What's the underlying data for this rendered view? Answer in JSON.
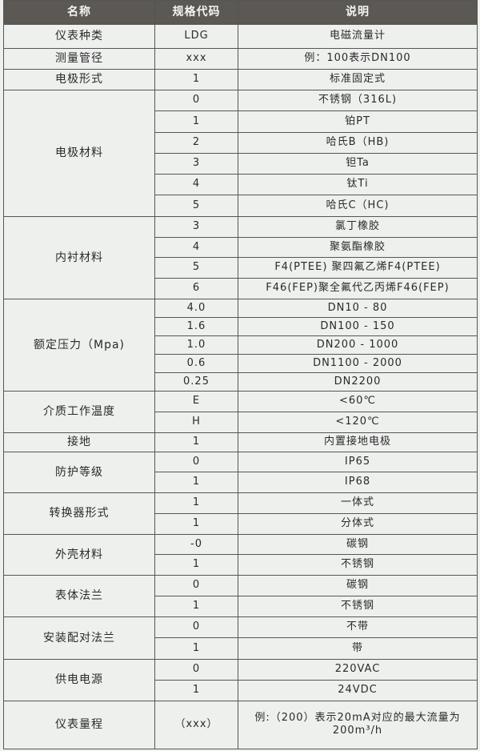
{
  "headers": [
    "名称",
    "规格代码",
    "说明"
  ],
  "groups": [
    {
      "name": "仪表种类",
      "rows": [
        [
          "LDG",
          "电磁流量计"
        ]
      ],
      "h": 30
    },
    {
      "name": "测量管径",
      "rows": [
        [
          "xxx",
          "例：100表示DN100"
        ]
      ],
      "h": 26
    },
    {
      "name": "电极形式",
      "rows": [
        [
          "1",
          "标准固定式"
        ]
      ],
      "h": 26
    },
    {
      "name": "电极材料",
      "rows": [
        [
          "0",
          "不锈钢（316L)"
        ],
        [
          "1",
          "铂PT"
        ],
        [
          "2",
          "哈氏B（HB)"
        ],
        [
          "3",
          "钽Ta"
        ],
        [
          "4",
          "钛Ti"
        ],
        [
          "5",
          "哈氏C（HC)"
        ]
      ],
      "h": 26.3
    },
    {
      "name": "内衬材料",
      "rows": [
        [
          "3",
          "氯丁橡胶"
        ],
        [
          "4",
          "聚氨酯橡胶"
        ],
        [
          "5",
          "F4(PTEE) 聚四氟乙烯F4(PTEE)"
        ],
        [
          "6",
          "F46(FEP)聚全氟代乙丙烯F46(FEP)"
        ]
      ],
      "h": 25.8
    },
    {
      "name": "额定压力（Mpa)",
      "rows": [
        [
          "4.0",
          "DN10 - 80"
        ],
        [
          "1.6",
          "DN100 - 150"
        ],
        [
          "1.0",
          "DN200 - 1000"
        ],
        [
          "0.6",
          "DN1100 - 2000"
        ],
        [
          "0.25",
          "DN2200"
        ]
      ],
      "h": 23
    },
    {
      "name": "介质工作温度",
      "rows": [
        [
          "E",
          "<60℃"
        ],
        [
          "H",
          "<120℃"
        ]
      ],
      "h": 26
    },
    {
      "name": "接地",
      "rows": [
        [
          "1",
          "内置接地电极"
        ]
      ],
      "h": 24
    },
    {
      "name": "防护等级",
      "rows": [
        [
          "0",
          "IP65"
        ],
        [
          "1",
          "IP68"
        ]
      ],
      "h": 25.5
    },
    {
      "name": "转换器形式",
      "rows": [
        [
          "1",
          "一体式"
        ],
        [
          "1",
          "分体式"
        ]
      ],
      "h": 26
    },
    {
      "name": "外壳材料",
      "rows": [
        [
          "-0",
          "碳钢"
        ],
        [
          "1",
          "不锈钢"
        ]
      ],
      "h": 25.5
    },
    {
      "name": "表体法兰",
      "rows": [
        [
          "0",
          "碳钢"
        ],
        [
          "1",
          "不锈钢"
        ]
      ],
      "h": 26
    },
    {
      "name": "安装配对法兰",
      "rows": [
        [
          "0",
          "不带"
        ],
        [
          "1",
          "带"
        ]
      ],
      "h": 26.5
    },
    {
      "name": "供电电源",
      "rows": [
        [
          "0",
          "220VAC"
        ],
        [
          "1",
          "24VDC"
        ]
      ],
      "h": 26
    },
    {
      "name": "仪表量程",
      "rows": [
        [
          "（xxx）",
          "例:（200）表示20mA对应的最大流量为200m³/h"
        ]
      ],
      "h": 60
    }
  ]
}
